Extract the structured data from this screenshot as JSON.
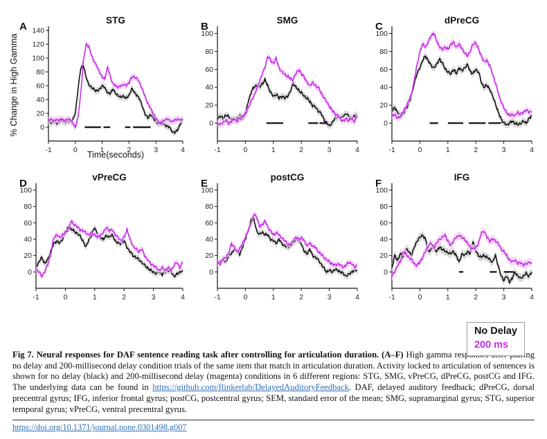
{
  "colors": {
    "black_line": "#111111",
    "black_band": "#c9c9c9",
    "magenta_line": "#c52de4",
    "magenta_band": "#f1c9f7",
    "sig_bar": "#1a1a1a",
    "link_blue": "#2a6ebb",
    "legend_border": "#9a9a9a"
  },
  "legend": {
    "items": [
      {
        "label": "No Delay",
        "color": "black"
      },
      {
        "label": "200 ms",
        "color": "magenta"
      }
    ]
  },
  "caption": {
    "lead": "Fig 7. Neural responses for DAF sentence reading task after controlling for articulation duration. (A–F)",
    "body1": " High gamma responses after pairing no delay and 200-millisecond delay condition trials of the same item that match in articulation duration. Activity locked to articulation of sentences is shown for no delay (black) and 200-millisecond delay (magenta) conditions in 6 different regions: STG, SMG, vPreCG, dPreCG, postCG and IFG. The underlying data can be found in ",
    "link": "https://github.com/flinkerlab/DelayedAuditoryFeedback",
    "body2": ". DAF, delayed auditory feedback; dPreCG, dorsal precentral gyrus; IFG, inferior frontal gyrus; postCG, postcentral gyrus; SEM, standard error of the mean; SMG, supramarginal gyrus; STG, superior temporal gyrus; vPreCG, ventral precentral gyrus."
  },
  "footer": {
    "doi_link": "https://doi.org/10.1371/journal.pone.0301498.g007"
  },
  "chart_data": {
    "type": "line",
    "x_unit": "seconds",
    "series_names": [
      "No Delay (black)",
      "200 ms delay (magenta)"
    ],
    "panels": [
      {
        "label": "A",
        "title": "STG",
        "xlabel": "Time(seconds)",
        "ylabel": "% Change in High Gamma",
        "xlim": [
          -1,
          4
        ],
        "ylim": [
          -20,
          142
        ],
        "xticks": [
          -1,
          0,
          1,
          2,
          3,
          4
        ],
        "yticks": [
          0,
          20,
          40,
          60,
          80,
          100,
          120,
          140
        ],
        "band": 5,
        "series": [
          {
            "name": "No Delay",
            "color_key": "black",
            "t0": -1,
            "dt": 0.1,
            "values": [
              8,
              6,
              9,
              5,
              8,
              10,
              7,
              9,
              8,
              10,
              20,
              55,
              85,
              90,
              72,
              62,
              57,
              55,
              52,
              55,
              60,
              57,
              50,
              48,
              56,
              48,
              46,
              43,
              45,
              42,
              46,
              56,
              50,
              46,
              40,
              30,
              18,
              14,
              18,
              14,
              8,
              4,
              8,
              4,
              2,
              0,
              -6,
              -8,
              -4,
              4,
              10
            ]
          },
          {
            "name": "200 ms",
            "color_key": "magenta",
            "t0": -1,
            "dt": 0.1,
            "values": [
              10,
              12,
              9,
              11,
              10,
              12,
              9,
              11,
              12,
              6,
              0,
              14,
              48,
              95,
              120,
              117,
              104,
              95,
              88,
              80,
              72,
              70,
              87,
              74,
              62,
              60,
              58,
              60,
              62,
              60,
              65,
              72,
              73,
              70,
              64,
              54,
              44,
              34,
              27,
              20,
              12,
              8,
              5,
              10,
              12,
              10,
              8,
              10,
              12,
              10,
              12
            ]
          }
        ],
        "sig_bars": [
          [
            0.35,
            0.95
          ],
          [
            1.05,
            1.3
          ],
          [
            1.85,
            2.05
          ],
          [
            2.15,
            2.8
          ]
        ]
      },
      {
        "label": "B",
        "title": "SMG",
        "xlabel": "",
        "ylabel": "",
        "xlim": [
          -1,
          4
        ],
        "ylim": [
          -20,
          105
        ],
        "xticks": [
          -1,
          0,
          1,
          2,
          3,
          4
        ],
        "yticks": [
          0,
          20,
          40,
          60,
          80,
          100
        ],
        "band": 4,
        "series": [
          {
            "name": "No Delay",
            "color_key": "black",
            "t0": -1,
            "dt": 0.1,
            "values": [
              5,
              8,
              5,
              9,
              7,
              4,
              3,
              5,
              8,
              5,
              10,
              24,
              34,
              40,
              42,
              40,
              44,
              48,
              42,
              34,
              30,
              32,
              28,
              30,
              28,
              30,
              34,
              45,
              40,
              37,
              34,
              30,
              28,
              24,
              20,
              18,
              14,
              11,
              5,
              0,
              -3,
              0,
              5,
              8,
              5,
              8,
              10,
              8,
              5,
              8,
              10
            ]
          },
          {
            "name": "200 ms",
            "color_key": "magenta",
            "t0": -1,
            "dt": 0.1,
            "values": [
              0,
              -2,
              1,
              3,
              0,
              2,
              5,
              2,
              5,
              8,
              10,
              17,
              24,
              30,
              38,
              46,
              55,
              62,
              75,
              70,
              67,
              72,
              62,
              57,
              55,
              52,
              50,
              48,
              55,
              60,
              55,
              52,
              45,
              42,
              45,
              42,
              40,
              34,
              29,
              24,
              19,
              14,
              11,
              8,
              5,
              2,
              5,
              3,
              5,
              2,
              8
            ]
          }
        ],
        "sig_bars": [
          [
            0.75,
            1.35
          ],
          [
            2.25,
            2.6
          ],
          [
            2.65,
            2.9
          ]
        ]
      },
      {
        "label": "C",
        "title": "dPreCG",
        "xlabel": "",
        "ylabel": "",
        "xlim": [
          -1,
          4
        ],
        "ylim": [
          -20,
          105
        ],
        "xticks": [
          -1,
          0,
          1,
          2,
          3,
          4
        ],
        "yticks": [
          0,
          20,
          40,
          60,
          80,
          100
        ],
        "band": 4,
        "series": [
          {
            "name": "No Delay",
            "color_key": "black",
            "t0": -1,
            "dt": 0.1,
            "values": [
              12,
              18,
              12,
              8,
              10,
              15,
              22,
              30,
              45,
              55,
              62,
              70,
              75,
              70,
              64,
              62,
              65,
              72,
              67,
              61,
              57,
              55,
              60,
              55,
              62,
              58,
              62,
              65,
              58,
              55,
              60,
              57,
              45,
              40,
              42,
              38,
              30,
              22,
              12,
              5,
              0,
              -2,
              0,
              2,
              0,
              -2,
              0,
              2,
              0,
              5,
              8
            ]
          },
          {
            "name": "200 ms",
            "color_key": "magenta",
            "t0": -1,
            "dt": 0.1,
            "values": [
              8,
              10,
              5,
              8,
              12,
              18,
              25,
              32,
              48,
              65,
              80,
              88,
              85,
              90,
              98,
              100,
              92,
              85,
              82,
              85,
              82,
              88,
              90,
              85,
              88,
              84,
              78,
              75,
              80,
              88,
              90,
              82,
              75,
              68,
              70,
              64,
              55,
              45,
              34,
              24,
              17,
              12,
              8,
              10,
              8,
              12,
              10,
              12,
              15,
              12,
              13
            ]
          }
        ],
        "sig_bars": [
          [
            0.35,
            0.65
          ],
          [
            1.0,
            1.55
          ],
          [
            1.75,
            2.35
          ],
          [
            2.45,
            2.9
          ]
        ]
      },
      {
        "label": "D",
        "title": "vPreCG",
        "xlabel": "",
        "ylabel": "",
        "xlim": [
          -1,
          4
        ],
        "ylim": [
          -20,
          105
        ],
        "xticks": [
          -1,
          0,
          1,
          2,
          3,
          4
        ],
        "yticks": [
          0,
          20,
          40,
          60,
          80,
          100
        ],
        "band": 4,
        "series": [
          {
            "name": "No Delay",
            "color_key": "black",
            "t0": -1,
            "dt": 0.1,
            "values": [
              5,
              12,
              18,
              10,
              15,
              25,
              34,
              38,
              35,
              40,
              48,
              55,
              52,
              50,
              47,
              44,
              38,
              30,
              40,
              45,
              55,
              45,
              42,
              40,
              44,
              43,
              45,
              38,
              35,
              35,
              38,
              30,
              25,
              20,
              18,
              15,
              12,
              8,
              5,
              2,
              0,
              -2,
              0,
              -3,
              0,
              2,
              0,
              -5,
              -3,
              0,
              2
            ]
          },
          {
            "name": "200 ms",
            "color_key": "magenta",
            "t0": -1,
            "dt": 0.1,
            "values": [
              2,
              0,
              -5,
              0,
              10,
              20,
              42,
              45,
              42,
              45,
              48,
              52,
              62,
              58,
              55,
              52,
              50,
              48,
              45,
              48,
              45,
              42,
              45,
              48,
              55,
              50,
              52,
              45,
              42,
              38,
              42,
              52,
              40,
              32,
              28,
              25,
              28,
              20,
              15,
              10,
              8,
              5,
              2,
              5,
              2,
              5,
              2,
              8,
              12,
              5,
              12
            ]
          }
        ],
        "sig_bars": []
      },
      {
        "label": "E",
        "title": "postCG",
        "xlabel": "",
        "ylabel": "",
        "xlim": [
          -1,
          4
        ],
        "ylim": [
          -20,
          105
        ],
        "xticks": [
          -1,
          0,
          1,
          2,
          3,
          4
        ],
        "yticks": [
          0,
          20,
          40,
          60,
          80,
          100
        ],
        "band": 4,
        "series": [
          {
            "name": "No Delay",
            "color_key": "black",
            "t0": -1,
            "dt": 0.1,
            "values": [
              10,
              12,
              15,
              12,
              20,
              22,
              28,
              25,
              22,
              30,
              40,
              50,
              63,
              65,
              50,
              46,
              48,
              46,
              45,
              40,
              38,
              35,
              40,
              35,
              32,
              30,
              32,
              35,
              40,
              38,
              35,
              25,
              22,
              28,
              20,
              18,
              15,
              10,
              5,
              0,
              2,
              0,
              3,
              2,
              0,
              -2,
              -5,
              -3,
              0,
              2,
              2
            ]
          },
          {
            "name": "200 ms",
            "color_key": "magenta",
            "t0": -1,
            "dt": 0.1,
            "values": [
              12,
              10,
              15,
              18,
              22,
              35,
              30,
              25,
              28,
              35,
              42,
              50,
              60,
              70,
              68,
              55,
              58,
              62,
              55,
              50,
              45,
              48,
              45,
              42,
              38,
              35,
              32,
              38,
              42,
              40,
              42,
              38,
              32,
              35,
              32,
              30,
              25,
              22,
              18,
              15,
              12,
              10,
              8,
              10,
              8,
              6,
              8,
              12,
              10,
              6,
              8
            ]
          }
        ],
        "sig_bars": []
      },
      {
        "label": "F",
        "title": "IFG",
        "xlabel": "",
        "ylabel": "",
        "xlim": [
          -1,
          4
        ],
        "ylim": [
          -20,
          105
        ],
        "xticks": [
          -1,
          0,
          1,
          2,
          3,
          4
        ],
        "yticks": [
          0,
          20,
          40,
          60,
          80,
          100
        ],
        "band": 5,
        "series": [
          {
            "name": "No Delay",
            "color_key": "black",
            "t0": -1,
            "dt": 0.1,
            "values": [
              5,
              20,
              14,
              22,
              18,
              28,
              25,
              20,
              30,
              38,
              42,
              45,
              40,
              25,
              28,
              30,
              25,
              30,
              28,
              25,
              24,
              22,
              25,
              20,
              12,
              22,
              20,
              25,
              22,
              38,
              25,
              20,
              18,
              20,
              18,
              15,
              12,
              20,
              8,
              -5,
              -10,
              -5,
              -12,
              -8,
              0,
              -5,
              -8,
              -5,
              -2,
              -5,
              0
            ]
          },
          {
            "name": "200 ms",
            "color_key": "magenta",
            "t0": -1,
            "dt": 0.1,
            "values": [
              -5,
              0,
              8,
              12,
              25,
              22,
              18,
              15,
              10,
              8,
              12,
              18,
              25,
              32,
              35,
              30,
              35,
              40,
              42,
              45,
              38,
              32,
              38,
              42,
              45,
              42,
              40,
              35,
              30,
              28,
              30,
              35,
              48,
              50,
              42,
              38,
              40,
              38,
              35,
              28,
              25,
              20,
              15,
              12,
              15,
              10,
              12,
              8,
              10,
              12,
              10
            ]
          }
        ],
        "sig_bars": [
          [
            1.4,
            1.55
          ],
          [
            2.5,
            2.75
          ],
          [
            3.0,
            3.35
          ]
        ]
      }
    ]
  }
}
